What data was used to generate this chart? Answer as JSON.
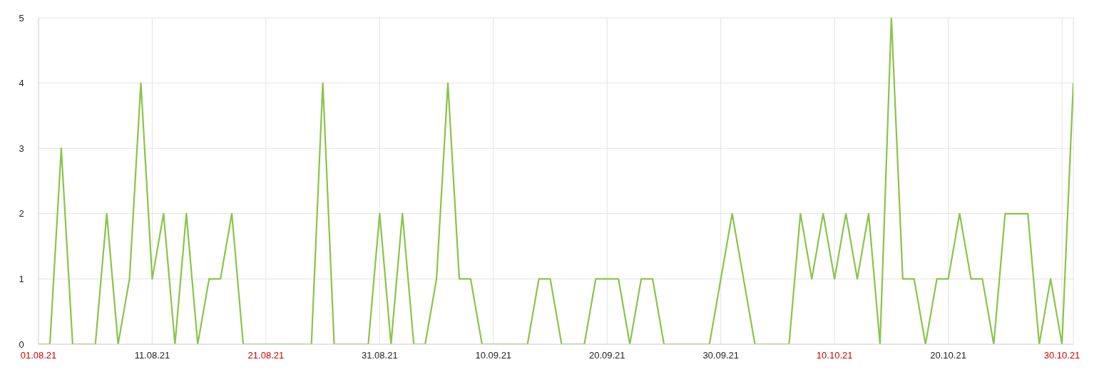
{
  "chart_data": {
    "type": "line",
    "x": [
      "--08-01",
      "--08-02",
      "--08-03",
      "--08-04",
      "--08-05",
      "--08-06",
      "--08-07",
      "--08-08",
      "--08-09",
      "--08-10",
      "--08-11",
      "--08-12",
      "--08-13",
      "--08-14",
      "--08-15",
      "--08-16",
      "--08-17",
      "--08-18",
      "--08-19",
      "--08-20",
      "--08-21",
      "--08-22",
      "--08-23",
      "--08-24",
      "--08-25",
      "--08-26",
      "--08-27",
      "--08-28",
      "--08-29",
      "--08-30",
      "--08-31",
      "--09-01",
      "--09-02",
      "--09-03",
      "--09-04",
      "--09-05",
      "--09-06",
      "--09-07",
      "--09-08",
      "--09-09",
      "--09-10",
      "--09-11",
      "--09-12",
      "--09-13",
      "--09-14",
      "--09-15",
      "--09-16",
      "--09-17",
      "--09-18",
      "--09-19",
      "--09-20",
      "--09-21",
      "--09-22",
      "--09-23",
      "--09-24",
      "--09-25",
      "--09-26",
      "--09-27",
      "--09-28",
      "--09-29",
      "--09-30",
      "--10-01",
      "--10-02",
      "--10-03",
      "--10-04",
      "--10-05",
      "--10-06",
      "--10-07",
      "--10-08",
      "--10-09",
      "--10-10",
      "--10-11",
      "--10-12",
      "--10-13",
      "--10-14",
      "--10-15",
      "--10-16",
      "--10-17",
      "--10-18",
      "--10-19",
      "--10-20",
      "--10-21",
      "--10-22",
      "--10-23",
      "--10-24",
      "--10-25",
      "--10-26",
      "--10-27",
      "--10-28",
      "--10-29",
      "--10-30",
      "--10-31"
    ],
    "series": [
      {
        "color": "#8bc34a",
        "values": [
          0,
          0,
          3,
          0,
          0,
          0,
          2,
          0,
          1,
          4,
          1,
          2,
          0,
          2,
          0,
          1,
          1,
          2,
          0,
          0,
          0,
          0,
          0,
          0,
          0,
          4,
          0,
          0,
          0,
          0,
          2,
          0,
          2,
          0,
          0,
          1,
          4,
          1,
          1,
          0,
          0,
          0,
          0,
          0,
          1,
          1,
          0,
          0,
          0,
          1,
          1,
          1,
          0,
          1,
          1,
          0,
          0,
          0,
          0,
          0,
          1,
          2,
          1,
          0,
          0,
          0,
          0,
          2,
          1,
          2,
          1,
          2,
          1,
          2,
          0,
          5,
          1,
          1,
          0,
          1,
          1,
          2,
          1,
          1,
          0,
          2,
          2,
          2,
          0,
          1,
          0,
          4
        ]
      }
    ],
    "xlim": [
      "--08-01",
      "--10-31"
    ],
    "xticks": [
      {
        "value": "--08-01",
        "label": "01.08.21"
      },
      {
        "value": "--08-11",
        "label": "11.08.21"
      },
      {
        "value": "--08-21",
        "label": "21.08.21"
      },
      {
        "value": "--08-31",
        "label": "31.08.21"
      },
      {
        "value": "--09-10",
        "label": "10.09.21"
      },
      {
        "value": "--09-20",
        "label": "20.09.21"
      },
      {
        "value": "--09-30",
        "label": "30.09.21"
      },
      {
        "value": "--10-10",
        "label": "10.10.21"
      },
      {
        "value": "--10-20",
        "label": "20.10.21"
      },
      {
        "value": "--10-30",
        "label": "30.10.21"
      }
    ],
    "ylim": [
      0,
      5
    ],
    "yticks": [
      0,
      1,
      2,
      3,
      4,
      5
    ],
    "grid": true,
    "marker": "none"
  }
}
